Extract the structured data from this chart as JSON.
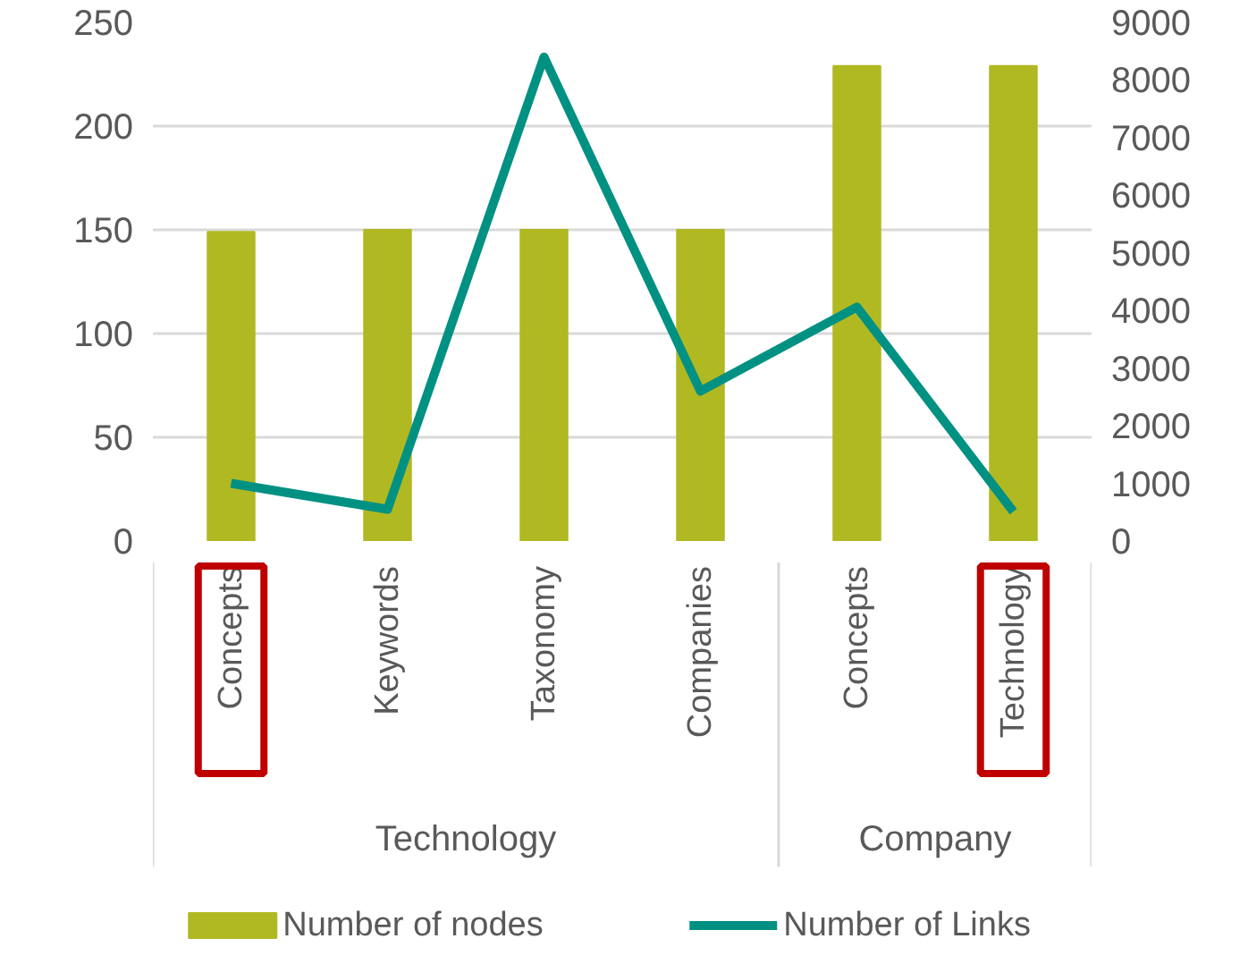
{
  "chart_data": {
    "type": "bar",
    "categories": [
      "Concepts",
      "Keywords",
      "Taxonomy",
      "Companies",
      "Concepts",
      "Technology"
    ],
    "series": [
      {
        "name": "Number of nodes",
        "color": "#b0b922",
        "values": [
          149,
          150,
          150,
          150,
          229,
          229
        ]
      },
      {
        "name": "Number of Links",
        "color": "#009183",
        "type": "line",
        "axis": "y2",
        "values": [
          1000,
          550,
          8400,
          2600,
          4060,
          510
        ]
      }
    ],
    "ylim": [
      0,
      250
    ],
    "yticks": [
      0,
      50,
      100,
      150,
      200,
      250
    ],
    "y2lim": [
      0,
      9000
    ],
    "y2ticks": [
      0,
      1000,
      2000,
      3000,
      4000,
      5000,
      6000,
      7000,
      8000,
      9000
    ],
    "annotations": [
      "Technology",
      "Company"
    ],
    "grid": "y",
    "legend": "bottom",
    "marker": "none",
    "line_style": "solid"
  }
}
